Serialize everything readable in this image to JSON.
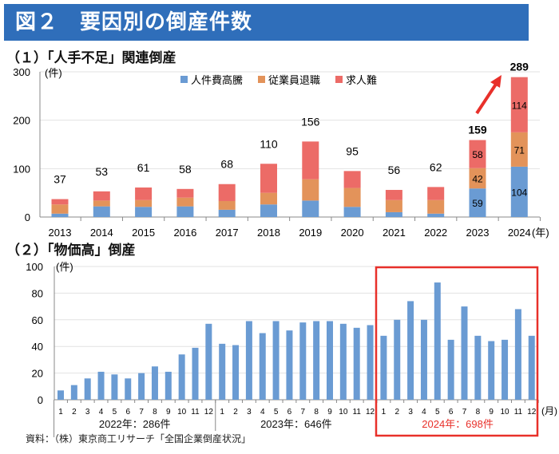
{
  "banner": {
    "title": "図２　要因別の倒産件数"
  },
  "source": "資料：（株）東京商工リサーチ「全国企業倒産状況」",
  "chart_data": [
    {
      "type": "bar",
      "stacked": true,
      "title": "（１）「人手不足」関連倒産",
      "ylabel": "(件)",
      "xlabel": "(年)",
      "ylim": [
        0,
        300
      ],
      "yticks": [
        0,
        100,
        200,
        300
      ],
      "grid": true,
      "legend_position": "top-center",
      "categories": [
        "2013",
        "2014",
        "2015",
        "2016",
        "2017",
        "2018",
        "2019",
        "2020",
        "2021",
        "2022",
        "2023",
        "2024"
      ],
      "totals": [
        37,
        53,
        61,
        58,
        68,
        110,
        156,
        95,
        56,
        62,
        159,
        289
      ],
      "bold_totals": [
        "2023",
        "2024"
      ],
      "series": [
        {
          "name": "人件費高騰",
          "color": "#6A9BD3",
          "values": [
            7,
            22,
            21,
            22,
            15,
            26,
            34,
            21,
            10,
            7,
            59,
            104
          ],
          "labeled": [
            false,
            false,
            false,
            false,
            false,
            false,
            false,
            false,
            false,
            false,
            true,
            true
          ]
        },
        {
          "name": "従業員退職",
          "color": "#E3935A",
          "values": [
            19,
            12,
            14,
            18,
            18,
            24,
            44,
            39,
            25,
            28,
            42,
            71
          ],
          "labeled": [
            false,
            false,
            false,
            false,
            false,
            false,
            false,
            false,
            false,
            false,
            true,
            true
          ]
        },
        {
          "name": "求人難",
          "color": "#EC6B67",
          "values": [
            11,
            19,
            26,
            18,
            35,
            60,
            78,
            35,
            21,
            27,
            58,
            114
          ],
          "labeled": [
            false,
            false,
            false,
            false,
            false,
            false,
            false,
            false,
            false,
            false,
            true,
            true
          ]
        }
      ],
      "annotation": "red-arrow 2023→2024"
    },
    {
      "type": "bar",
      "title": "（２）「物価高」倒産",
      "ylabel": "(件)",
      "xlabel": "(月)",
      "ylim": [
        0,
        100
      ],
      "yticks": [
        0,
        20,
        40,
        60,
        80,
        100
      ],
      "grid": true,
      "color": "#6A9BD3",
      "months": [
        "1",
        "2",
        "3",
        "4",
        "5",
        "6",
        "7",
        "8",
        "9",
        "10",
        "11",
        "12"
      ],
      "groups": [
        {
          "label": "2022年：286件",
          "values": [
            7,
            11,
            16,
            21,
            19,
            16,
            20,
            25,
            21,
            34,
            39,
            57
          ],
          "highlight": false
        },
        {
          "label": "2023年：646件",
          "values": [
            42,
            41,
            59,
            50,
            59,
            52,
            58,
            59,
            59,
            57,
            54,
            56
          ],
          "highlight": false
        },
        {
          "label": "2024年：698件",
          "values": [
            48,
            60,
            74,
            60,
            88,
            45,
            70,
            48,
            44,
            45,
            68,
            48
          ],
          "highlight": true,
          "highlight_color": "#E8302A"
        }
      ]
    }
  ]
}
